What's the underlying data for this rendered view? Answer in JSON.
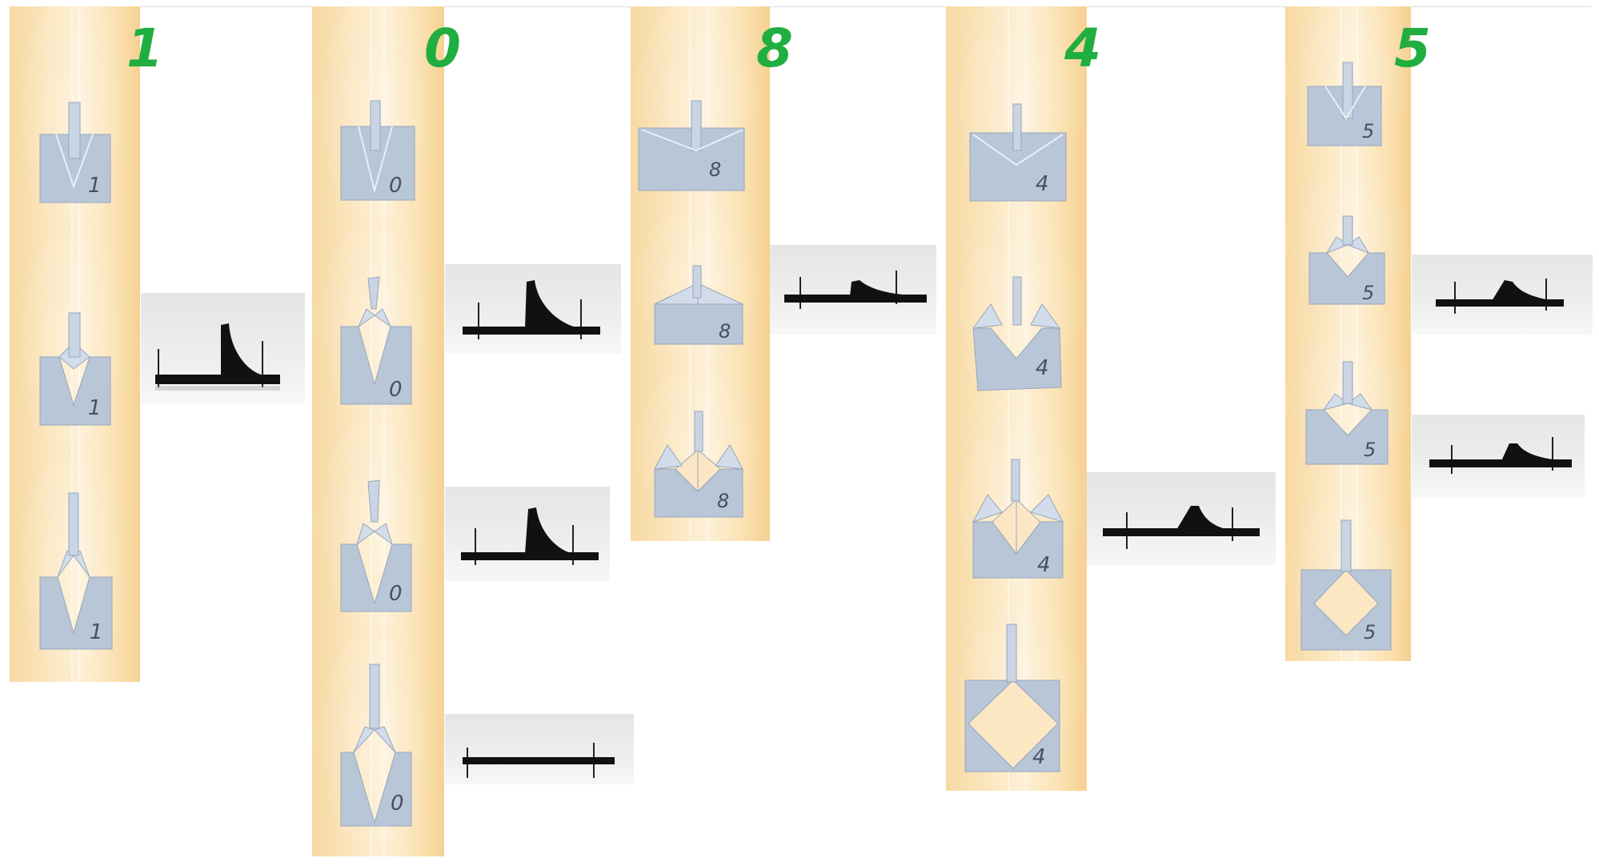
{
  "columns": [
    {
      "id": "col-1",
      "digit": "1",
      "panel_label": "1",
      "steps": 3,
      "side_views": 1
    },
    {
      "id": "col-0",
      "digit": "0",
      "panel_label": "0",
      "steps": 4,
      "side_views": 3
    },
    {
      "id": "col-8",
      "digit": "8",
      "panel_label": "8",
      "steps": 3,
      "side_views": 1
    },
    {
      "id": "col-4",
      "digit": "4",
      "panel_label": "4",
      "steps": 4,
      "side_views": 1
    },
    {
      "id": "col-5",
      "digit": "5",
      "panel_label": "5",
      "steps": 4,
      "side_views": 2
    }
  ],
  "colors": {
    "digit": "#1fae3f",
    "panel": "#b9c6d8",
    "tile": "#fbe2b3",
    "strip": "#111111",
    "side_bg": "#e7e9e9"
  }
}
